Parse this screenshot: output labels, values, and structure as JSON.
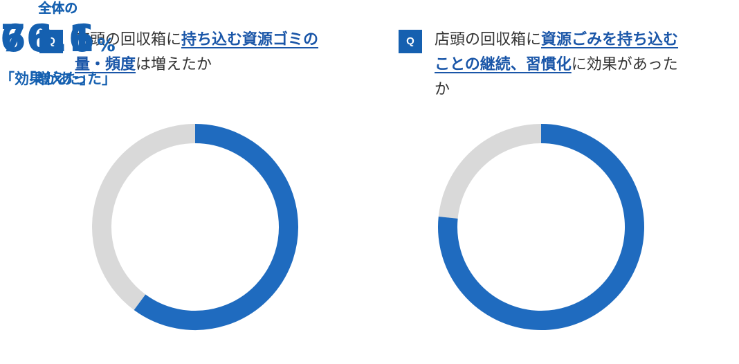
{
  "chart_data": [
    {
      "type": "pie",
      "question_badge": "Q",
      "question_parts": [
        {
          "text": "店頭の回収箱に",
          "hl": false
        },
        {
          "text": "持ち込む資源ゴミの量・頻度",
          "hl": true
        },
        {
          "text": "は増えたか",
          "hl": false
        }
      ],
      "center_label": "全体の",
      "value": 60.1,
      "value_text": "60.1",
      "unit": "%",
      "answer": "「増えた」",
      "fill_color": "#1f6bbf",
      "rest_color": "#d9d9d9"
    },
    {
      "type": "pie",
      "question_badge": "Q",
      "question_parts": [
        {
          "text": "店頭の回収箱に",
          "hl": false
        },
        {
          "text": "資源ごみを持ち込むことの継続、習慣化",
          "hl": true
        },
        {
          "text": "に効果があったか",
          "hl": false
        }
      ],
      "center_label": "全体の",
      "value": 76.6,
      "value_text": "76.6",
      "unit": "%",
      "answer": "「効果があった」",
      "fill_color": "#1f6bbf",
      "rest_color": "#d9d9d9"
    }
  ]
}
